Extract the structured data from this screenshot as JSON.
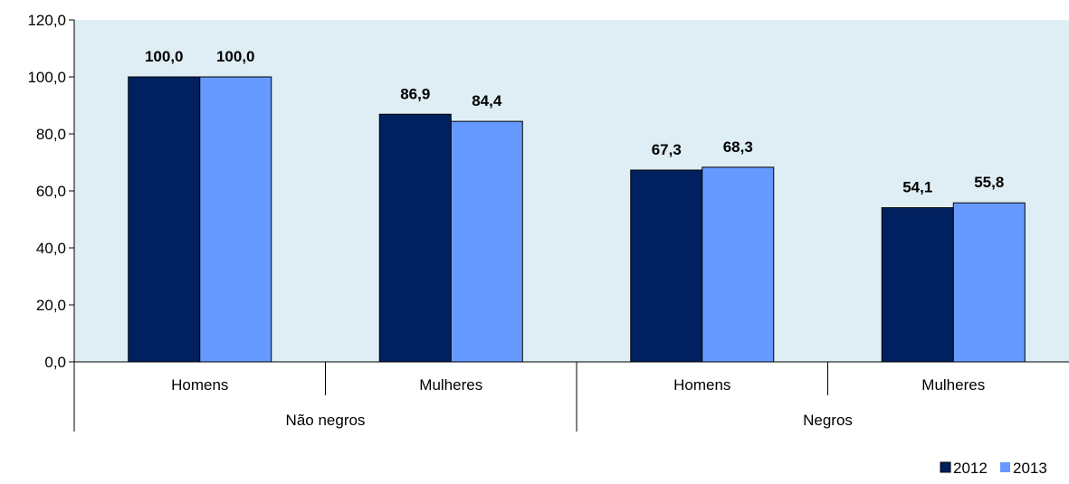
{
  "chart_data": {
    "type": "bar",
    "groups": [
      {
        "label": "Não negros",
        "categories": [
          "Homens",
          "Mulheres"
        ]
      },
      {
        "label": "Negros",
        "categories": [
          "Homens",
          "Mulheres"
        ]
      }
    ],
    "categories": [
      "Homens",
      "Mulheres",
      "Homens",
      "Mulheres"
    ],
    "series": [
      {
        "name": "2012",
        "values": [
          100.0,
          86.9,
          67.3,
          54.1
        ],
        "labels": [
          "100,0",
          "86,9",
          "67,3",
          "54,1"
        ]
      },
      {
        "name": "2013",
        "values": [
          100.0,
          84.4,
          68.3,
          55.8
        ],
        "labels": [
          "100,0",
          "84,4",
          "68,3",
          "55,8"
        ]
      }
    ],
    "ylim": [
      0,
      120
    ],
    "yticks": [
      0,
      20,
      40,
      60,
      80,
      100,
      120
    ],
    "ytick_labels": [
      "0,0",
      "20,0",
      "40,0",
      "60,0",
      "80,0",
      "100,0",
      "120,0"
    ],
    "grid": false,
    "legend_position": "bottom-right",
    "colors": {
      "series_2012": "#002060",
      "series_2013": "#6699FF",
      "plot_background": "#DEEEF4",
      "axis": "#000000"
    }
  }
}
